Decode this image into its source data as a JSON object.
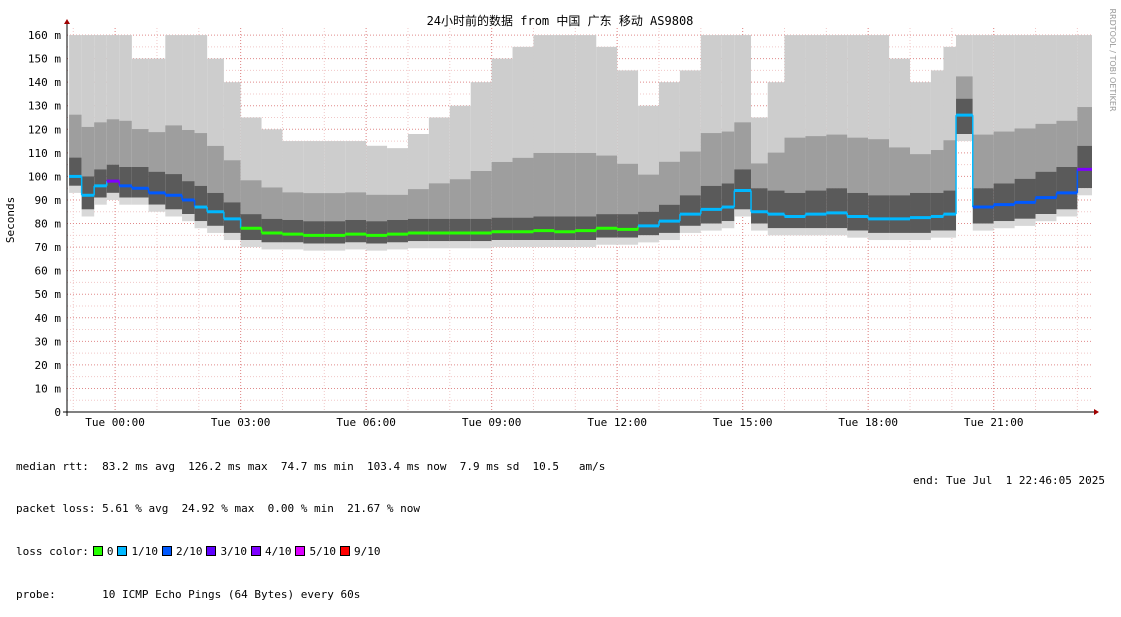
{
  "chart_data": {
    "type": "area",
    "title": "24小时前的数据 from 中国 广东 移动 AS9808",
    "ylabel": "Seconds",
    "side_text": "RRDTOOL / TOBI OETIKER",
    "y_ticks": [
      {
        "v": 0,
        "label": "0"
      },
      {
        "v": 10,
        "label": "10 m"
      },
      {
        "v": 20,
        "label": "20 m"
      },
      {
        "v": 30,
        "label": "30 m"
      },
      {
        "v": 40,
        "label": "40 m"
      },
      {
        "v": 50,
        "label": "50 m"
      },
      {
        "v": 60,
        "label": "60 m"
      },
      {
        "v": 70,
        "label": "70 m"
      },
      {
        "v": 80,
        "label": "80 m"
      },
      {
        "v": 90,
        "label": "90 m"
      },
      {
        "v": 100,
        "label": "100 m"
      },
      {
        "v": 110,
        "label": "110 m"
      },
      {
        "v": 120,
        "label": "120 m"
      },
      {
        "v": 130,
        "label": "130 m"
      },
      {
        "v": 140,
        "label": "140 m"
      },
      {
        "v": 150,
        "label": "150 m"
      },
      {
        "v": 160,
        "label": "160 m"
      }
    ],
    "ylim": [
      0,
      163
    ],
    "x_range_hours": [
      -1.15,
      23.35
    ],
    "x_ticks": [
      {
        "h": 0,
        "label": "Tue 00:00"
      },
      {
        "h": 3,
        "label": "Tue 03:00"
      },
      {
        "h": 6,
        "label": "Tue 06:00"
      },
      {
        "h": 9,
        "label": "Tue 09:00"
      },
      {
        "h": 12,
        "label": "Tue 12:00"
      },
      {
        "h": 15,
        "label": "Tue 15:00"
      },
      {
        "h": 18,
        "label": "Tue 18:00"
      },
      {
        "h": 21,
        "label": "Tue 21:00"
      }
    ],
    "median_series": {
      "hours": [
        -1.1,
        -0.8,
        -0.5,
        -0.2,
        0.1,
        0.4,
        0.8,
        1.2,
        1.6,
        1.9,
        2.2,
        2.6,
        3.0,
        3.5,
        4.0,
        4.5,
        5.0,
        5.5,
        6.0,
        6.5,
        7.0,
        7.5,
        8.0,
        8.5,
        9.0,
        9.5,
        10.0,
        10.5,
        11.0,
        11.5,
        12.0,
        12.5,
        13.0,
        13.5,
        14.0,
        14.5,
        14.8,
        15.2,
        15.6,
        16.0,
        16.5,
        17.0,
        17.5,
        18.0,
        18.5,
        19.0,
        19.5,
        19.8,
        20.1,
        20.5,
        21.0,
        21.5,
        22.0,
        22.5,
        23.0
      ],
      "values": [
        100,
        92,
        96,
        98,
        96,
        95,
        93,
        92,
        90,
        87,
        85,
        82,
        78,
        76,
        75.5,
        75,
        75,
        75.5,
        75,
        75.5,
        76,
        76,
        76,
        76,
        76.5,
        76.5,
        77,
        76.5,
        77,
        78,
        77.5,
        79,
        81,
        84,
        86,
        87,
        94,
        85,
        84,
        83,
        84,
        84.5,
        83,
        82,
        82,
        82.5,
        83,
        84,
        126,
        87,
        88,
        89,
        91,
        93,
        103
      ],
      "band_lo": [
        96,
        86,
        91,
        93,
        91,
        91,
        88,
        86,
        84,
        81,
        79,
        76,
        73,
        72,
        72,
        71.5,
        71.5,
        72,
        71.5,
        72,
        72.5,
        72.5,
        72.5,
        72.5,
        73,
        73,
        73,
        73,
        73,
        74,
        74,
        75,
        76,
        79,
        80,
        81,
        86,
        80,
        78,
        78,
        78,
        78,
        77,
        76,
        76,
        76,
        77,
        77,
        118,
        80,
        81,
        82,
        84,
        86,
        95
      ],
      "band_hi": [
        108,
        100,
        103,
        105,
        104,
        104,
        102,
        101,
        98,
        96,
        93,
        89,
        84,
        82,
        81.5,
        81,
        81,
        81.5,
        81,
        81.5,
        82,
        82,
        82,
        82,
        82.5,
        82.5,
        83,
        83,
        83,
        84,
        84,
        85,
        88,
        92,
        96,
        97,
        103,
        95,
        94,
        93,
        94,
        95,
        93,
        92,
        92,
        93,
        93,
        94,
        133,
        95,
        97,
        99,
        102,
        104,
        113
      ],
      "spike_hi": [
        160,
        160,
        160,
        160,
        160,
        150,
        150,
        160,
        160,
        160,
        150,
        140,
        125,
        120,
        115,
        115,
        115,
        115,
        113,
        112,
        118,
        125,
        130,
        140,
        150,
        155,
        160,
        160,
        160,
        155,
        145,
        130,
        140,
        145,
        160,
        160,
        160,
        125,
        140,
        160,
        160,
        160,
        160,
        160,
        150,
        140,
        145,
        155,
        160,
        160,
        160,
        160,
        160,
        160,
        160
      ],
      "loss": [
        1,
        1,
        1,
        4,
        2,
        2,
        2,
        2,
        2,
        1,
        1,
        1,
        0,
        0,
        0,
        0,
        0,
        0,
        0,
        0,
        0,
        0,
        0,
        0,
        0,
        0,
        0,
        0,
        0,
        0,
        0,
        1,
        1,
        1,
        1,
        1,
        1,
        1,
        1,
        1,
        1,
        1,
        1,
        1,
        1,
        1,
        1,
        1,
        1,
        2,
        2,
        2,
        2,
        2,
        4
      ]
    },
    "loss_colors": [
      "#26ff00",
      "#00b8ff",
      "#0059ff",
      "#5e00ff",
      "#7e00ff",
      "#dd00ff",
      "#ff0000"
    ]
  },
  "stats": {
    "median_rtt": "median rtt:  83.2 ms avg  126.2 ms max  74.7 ms min  103.4 ms now  7.9 ms sd  10.5   am/s",
    "packet_loss": "packet loss: 5.61 % avg  24.92 % max  0.00 % min  21.67 % now",
    "loss_color_label": "loss color:",
    "probe": "probe:       10 ICMP Echo Pings (64 Bytes) every 60s",
    "end": "end: Tue Jul  1 22:46:05 2025"
  },
  "legend": [
    {
      "label": "0",
      "color": "#26ff00"
    },
    {
      "label": "1/10",
      "color": "#00b8ff"
    },
    {
      "label": "2/10",
      "color": "#0059ff"
    },
    {
      "label": "3/10",
      "color": "#5e00ff"
    },
    {
      "label": "4/10",
      "color": "#7e00ff"
    },
    {
      "label": "5/10",
      "color": "#dd00ff"
    },
    {
      "label": "9/10",
      "color": "#ff0000"
    }
  ]
}
